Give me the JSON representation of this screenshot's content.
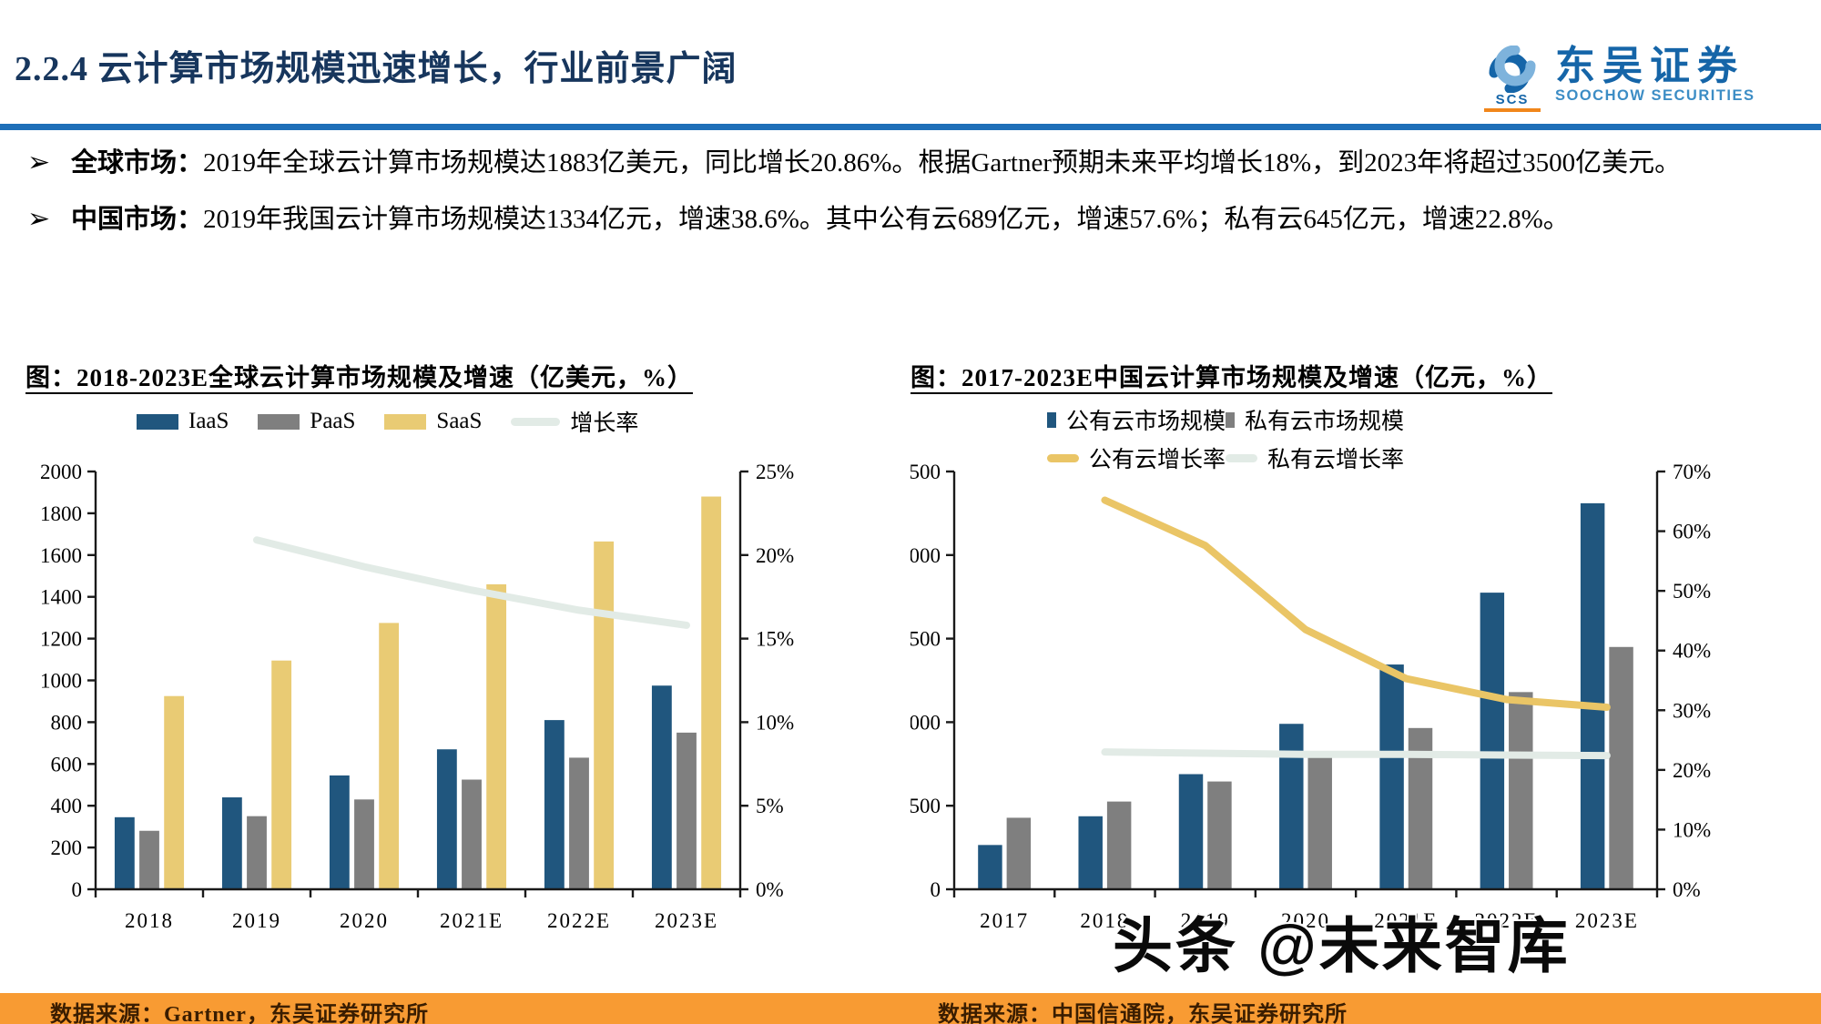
{
  "header": {
    "title": "2.2.4 云计算市场规模迅速增长，行业前景广阔",
    "logo": {
      "cn": "东吴证券",
      "en": "SOOCHOW SECURITIES",
      "abbr": "SCS"
    }
  },
  "bullet_marker": "➢",
  "bullets": [
    {
      "label": "全球市场：",
      "text": "2019年全球云计算市场规模达1883亿美元，同比增长20.86%。根据Gartner预期未来平均增长18%，到2023年将超过3500亿美元。"
    },
    {
      "label": "中国市场：",
      "text": "2019年我国云计算市场规模达1334亿元，增速38.6%。其中公有云689亿元，增速57.6%；私有云645亿元，增速22.8%。"
    }
  ],
  "watermark": "头条 @未来智库",
  "footer": {
    "left": "数据来源：Gartner，东吴证券研究所",
    "right": "数据来源：中国信通院，东吴证券研究所"
  },
  "colors": {
    "title_navy": "#17365D",
    "header_rule_blue": "#1E6FB8",
    "bar_blue": "#20567E",
    "bar_gray": "#7F7F7F",
    "bar_yellow": "#E9CB74",
    "line_yellow": "#EAC566",
    "line_light": "#E2EBE6",
    "footer_orange": "#F89B33"
  },
  "chart_data": [
    {
      "type": "bar",
      "title": "图：2018-2023E全球云计算市场规模及增速（亿美元，%）",
      "categories": [
        "2018",
        "2019",
        "2020",
        "2021E",
        "2022E",
        "2023E"
      ],
      "series": [
        {
          "name": "IaaS",
          "type": "bar",
          "color": "#20567E",
          "values": [
            345,
            440,
            545,
            670,
            810,
            975
          ]
        },
        {
          "name": "PaaS",
          "type": "bar",
          "color": "#7F7F7F",
          "values": [
            280,
            350,
            430,
            525,
            630,
            750
          ]
        },
        {
          "name": "SaaS",
          "type": "bar",
          "color": "#E9CB74",
          "values": [
            925,
            1095,
            1275,
            1460,
            1665,
            1880
          ]
        },
        {
          "name": "增长率",
          "type": "line",
          "axis": "right",
          "color": "#E2EBE6",
          "values": [
            null,
            20.9,
            19.3,
            17.9,
            16.7,
            15.8
          ]
        }
      ],
      "y_left": {
        "min": 0,
        "max": 2000,
        "step": 200
      },
      "y_right": {
        "min": 0,
        "max": 25,
        "step": 5,
        "suffix": "%"
      },
      "grid": false,
      "legend_position": "top"
    },
    {
      "type": "bar",
      "title": "图：2017-2023E中国云计算市场规模及增速（亿元，%）",
      "categories": [
        "2017",
        "2018",
        "2019",
        "2020",
        "2021E",
        "2022E",
        "2023E"
      ],
      "series": [
        {
          "name": "公有云市场规模",
          "type": "bar",
          "color": "#20567E",
          "values": [
            265,
            437,
            689,
            990,
            1345,
            1775,
            2310
          ]
        },
        {
          "name": "私有云市场规模",
          "type": "bar",
          "color": "#7F7F7F",
          "values": [
            428,
            525,
            645,
            791,
            965,
            1180,
            1450
          ]
        },
        {
          "name": "公有云增长率",
          "type": "line",
          "axis": "right",
          "color": "#EAC566",
          "values": [
            null,
            65.2,
            57.6,
            43.5,
            35.3,
            31.8,
            30.5
          ]
        },
        {
          "name": "私有云增长率",
          "type": "line",
          "axis": "right",
          "color": "#E2EBE6",
          "values": [
            null,
            23.0,
            22.8,
            22.6,
            22.6,
            22.5,
            22.4
          ]
        }
      ],
      "y_left": {
        "min": 0,
        "max": 2500,
        "step": 500
      },
      "y_right": {
        "min": 0,
        "max": 70,
        "step": 10,
        "suffix": "%"
      },
      "grid": false,
      "legend_position": "top"
    }
  ]
}
